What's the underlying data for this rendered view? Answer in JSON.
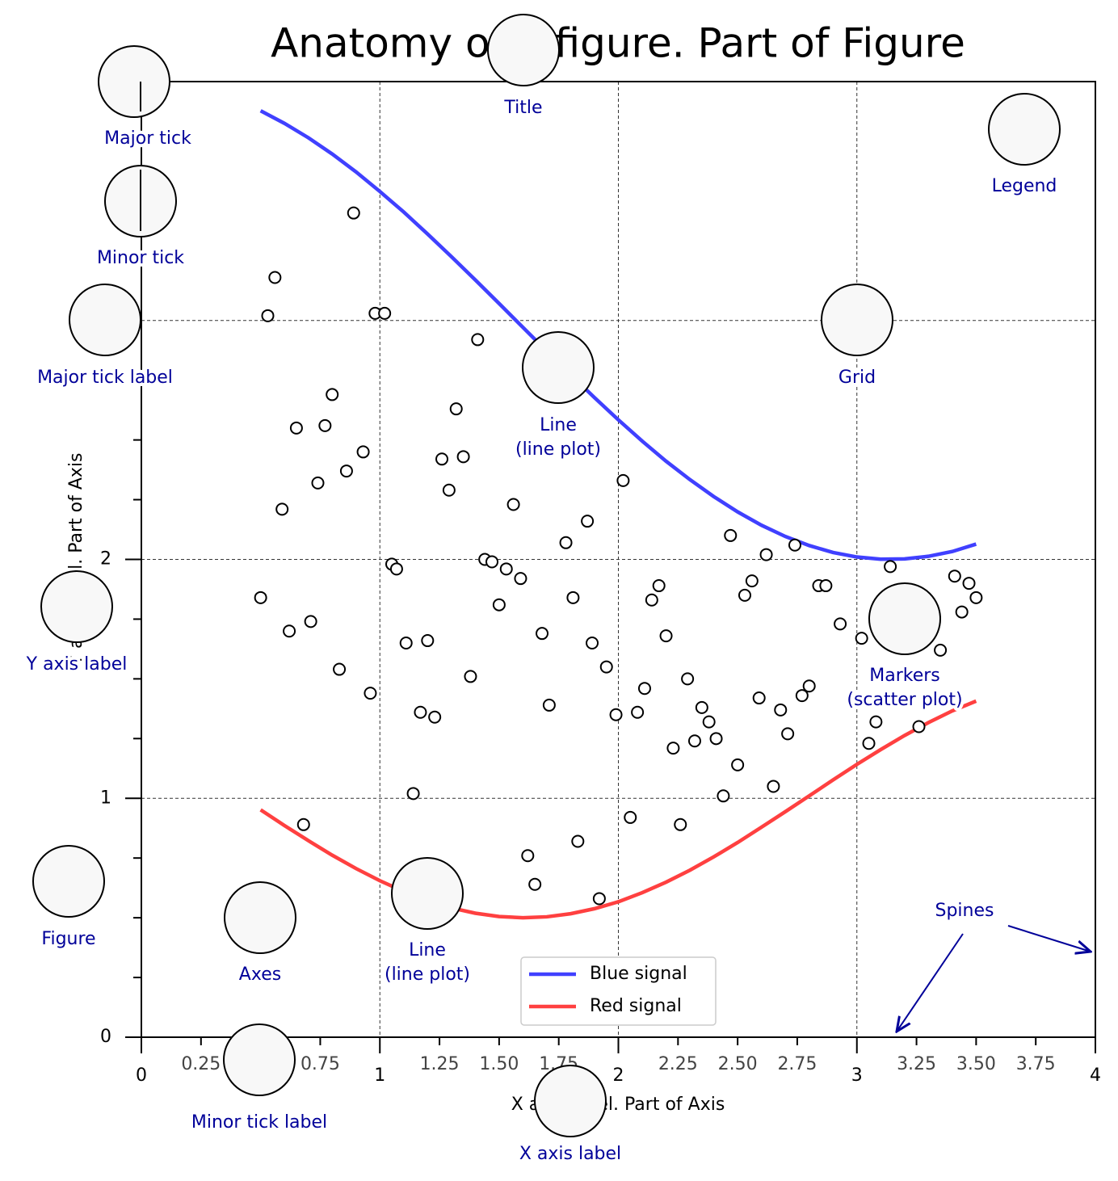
{
  "chart_data": {
    "type": "line",
    "title": "Anatomy of a figure. Part of Figure",
    "xlabel": "X axis label. Part of Axis",
    "ylabel": "Y axis label. Part of Axis",
    "xlim": [
      0,
      4
    ],
    "ylim": [
      0,
      4
    ],
    "xticks": [
      0,
      1,
      2,
      3,
      4
    ],
    "yticks": [
      0,
      1,
      2,
      3,
      4
    ],
    "xminorticks": [
      0.25,
      {
        "value": 0.5,
        "label": "0.50"
      },
      0.75,
      1.25,
      {
        "value": 1.5,
        "label": "1.50"
      },
      1.75,
      2.25,
      {
        "value": 2.5,
        "label": "2.50"
      },
      2.75,
      3.25,
      {
        "value": 3.5,
        "label": "3.50"
      },
      3.75
    ],
    "yminorticks": [
      0.25,
      0.5,
      0.75,
      1.25,
      1.5,
      1.75,
      2.25,
      2.5,
      2.75,
      3.25,
      3.5,
      3.75
    ],
    "grid": true,
    "legend": "lower center",
    "series": [
      {
        "type": "line",
        "name": "Blue signal",
        "color": "#4040ff",
        "x": [
          0.5,
          0.6,
          0.7,
          0.8,
          0.9,
          1.0,
          1.1,
          1.2,
          1.3,
          1.4,
          1.5,
          1.6,
          1.7,
          1.8,
          1.9,
          2.0,
          2.1,
          2.2,
          2.3,
          2.4,
          2.5,
          2.6,
          2.7,
          2.8,
          2.9,
          3.0,
          3.1,
          3.2,
          3.3,
          3.4,
          3.5
        ],
        "values": [
          3.878,
          3.825,
          3.765,
          3.697,
          3.622,
          3.54,
          3.454,
          3.362,
          3.267,
          3.17,
          3.071,
          2.971,
          2.871,
          2.773,
          2.677,
          2.584,
          2.495,
          2.411,
          2.334,
          2.263,
          2.199,
          2.143,
          2.096,
          2.058,
          2.029,
          2.01,
          2.001,
          2.002,
          2.013,
          2.033,
          2.064
        ]
      },
      {
        "type": "line",
        "name": "Red signal",
        "color": "#ff4040",
        "x": [
          0.5,
          0.6,
          0.7,
          0.8,
          0.9,
          1.0,
          1.1,
          1.2,
          1.3,
          1.4,
          1.5,
          1.6,
          1.7,
          1.8,
          1.9,
          2.0,
          2.1,
          2.2,
          2.3,
          2.4,
          2.5,
          2.6,
          2.7,
          2.8,
          2.9,
          3.0,
          3.1,
          3.2,
          3.3,
          3.4,
          3.5
        ],
        "values": [
          0.952,
          0.886,
          0.823,
          0.762,
          0.706,
          0.655,
          0.61,
          0.572,
          0.541,
          0.519,
          0.505,
          0.5,
          0.504,
          0.517,
          0.538,
          0.567,
          0.605,
          0.649,
          0.699,
          0.755,
          0.815,
          0.879,
          0.944,
          1.01,
          1.077,
          1.142,
          1.204,
          1.263,
          1.317,
          1.366,
          1.407
        ]
      },
      {
        "type": "scatter",
        "color": "#000000",
        "x": [
          0.89,
          0.56,
          0.53,
          0.98,
          1.02,
          1.41,
          0.8,
          1.32,
          0.65,
          0.77,
          0.93,
          1.26,
          1.35,
          0.86,
          0.74,
          1.29,
          0.59,
          1.56,
          2.02,
          1.87,
          1.78,
          2.47,
          2.74,
          2.62,
          1.44,
          1.47,
          1.05,
          1.07,
          1.53,
          1.59,
          3.14,
          3.41,
          3.47,
          2.84,
          2.87,
          2.56,
          2.53,
          2.17,
          2.14,
          1.81,
          0.5,
          1.5,
          3.5,
          3.44,
          3.17,
          3.29,
          3.11,
          3.2,
          2.93,
          3.02,
          0.71,
          0.62,
          1.68,
          2.2,
          1.11,
          1.2,
          1.89,
          3.35,
          1.95,
          0.83,
          1.38,
          2.29,
          2.8,
          2.11,
          0.96,
          2.77,
          2.59,
          1.71,
          2.35,
          1.17,
          2.68,
          2.08,
          1.99,
          1.23,
          2.38,
          3.08,
          2.71,
          2.32,
          2.41,
          3.05,
          3.26,
          2.23,
          2.5,
          2.65,
          1.14,
          2.44,
          2.05,
          0.68,
          2.26,
          1.83,
          1.62,
          1.65,
          1.92
        ],
        "values": [
          3.45,
          3.18,
          3.02,
          3.03,
          3.03,
          2.92,
          2.69,
          2.63,
          2.55,
          2.56,
          2.45,
          2.42,
          2.43,
          2.37,
          2.32,
          2.29,
          2.21,
          2.23,
          2.33,
          2.16,
          2.07,
          2.1,
          2.06,
          2.02,
          2.0,
          1.99,
          1.98,
          1.96,
          1.96,
          1.92,
          1.97,
          1.93,
          1.9,
          1.89,
          1.89,
          1.91,
          1.85,
          1.89,
          1.83,
          1.84,
          1.84,
          1.81,
          1.84,
          1.78,
          1.77,
          1.76,
          1.72,
          1.71,
          1.73,
          1.67,
          1.74,
          1.7,
          1.69,
          1.68,
          1.65,
          1.66,
          1.65,
          1.62,
          1.55,
          1.54,
          1.51,
          1.5,
          1.47,
          1.46,
          1.44,
          1.43,
          1.42,
          1.39,
          1.38,
          1.36,
          1.37,
          1.36,
          1.35,
          1.34,
          1.32,
          1.32,
          1.27,
          1.24,
          1.25,
          1.23,
          1.3,
          1.21,
          1.14,
          1.05,
          1.02,
          1.01,
          0.92,
          0.89,
          0.89,
          0.82,
          0.76,
          0.64,
          0.58
        ]
      }
    ],
    "annotations": [
      {
        "lines": [
          "Title"
        ]
      },
      {
        "lines": [
          "Major tick"
        ]
      },
      {
        "lines": [
          "Minor tick"
        ]
      },
      {
        "lines": [
          "Major tick label"
        ]
      },
      {
        "lines": [
          "Grid"
        ]
      },
      {
        "lines": [
          "Legend"
        ]
      },
      {
        "lines": [
          "Line",
          "(line plot)"
        ]
      },
      {
        "lines": [
          "Y axis label"
        ]
      },
      {
        "lines": [
          "Markers",
          "(scatter plot)"
        ]
      },
      {
        "lines": [
          "Figure"
        ]
      },
      {
        "lines": [
          "Axes"
        ]
      },
      {
        "lines": [
          "Line",
          "(line plot)"
        ]
      },
      {
        "lines": [
          "Minor tick label"
        ]
      },
      {
        "lines": [
          "X axis label"
        ]
      },
      {
        "lines": [
          "Spines"
        ]
      }
    ]
  }
}
